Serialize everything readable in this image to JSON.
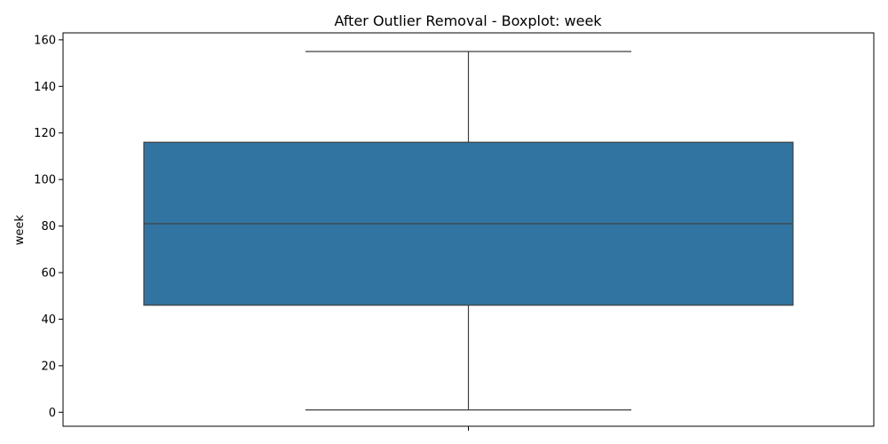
{
  "chart_data": {
    "type": "boxplot",
    "title": "After Outlier Removal - Boxplot: week",
    "ylabel": "week",
    "xlabel": "",
    "ylim": [
      -6,
      163
    ],
    "yticks": [
      0,
      20,
      40,
      60,
      80,
      100,
      120,
      140,
      160
    ],
    "grid": false,
    "box": {
      "whisker_low": 1,
      "q1": 46,
      "median": 81,
      "q3": 116,
      "whisker_high": 155
    },
    "box_color": "#3274a1",
    "line_color": "#3f3f3f"
  }
}
